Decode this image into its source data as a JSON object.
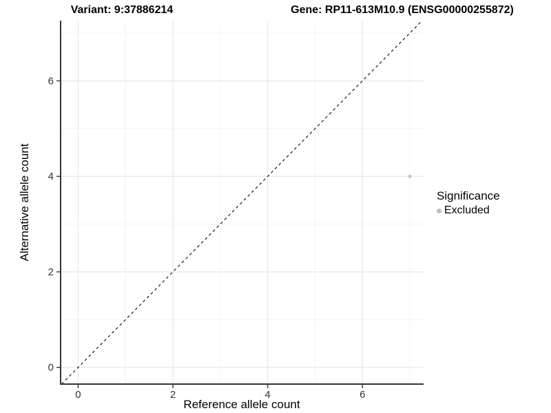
{
  "chart_data": {
    "type": "scatter",
    "titles": {
      "variant": "Variant: 9:37886214",
      "gene": "Gene: RP11-613M10.9 (ENSG00000255872)"
    },
    "xlabel": "Reference allele count",
    "ylabel": "Alternative allele count",
    "xlim": [
      -0.37,
      7.29
    ],
    "ylim": [
      -0.35,
      7.26
    ],
    "xticks": [
      0,
      2,
      4,
      6
    ],
    "yticks": [
      0,
      2,
      4,
      6
    ],
    "xticks_minor": [
      1,
      3,
      5,
      7
    ],
    "yticks_minor": [
      1,
      3,
      5,
      7
    ],
    "grid": "major+minor",
    "identity_line": {
      "equation": "y = x",
      "style": "dashed",
      "color": "#000000"
    },
    "series": [
      {
        "name": "Excluded",
        "color": "#bebebe",
        "points": [
          {
            "x": 7,
            "y": 4
          }
        ]
      }
    ],
    "legend": {
      "title": "Significance",
      "position": "right",
      "entries": [
        {
          "label": "Excluded",
          "color": "#bebebe"
        }
      ]
    },
    "colors": {
      "background": "#ffffff",
      "axis_line": "#333333",
      "tick_label": "#333333",
      "grid_major": "#e8e8e8",
      "grid_minor": "#f3f3f3"
    }
  }
}
